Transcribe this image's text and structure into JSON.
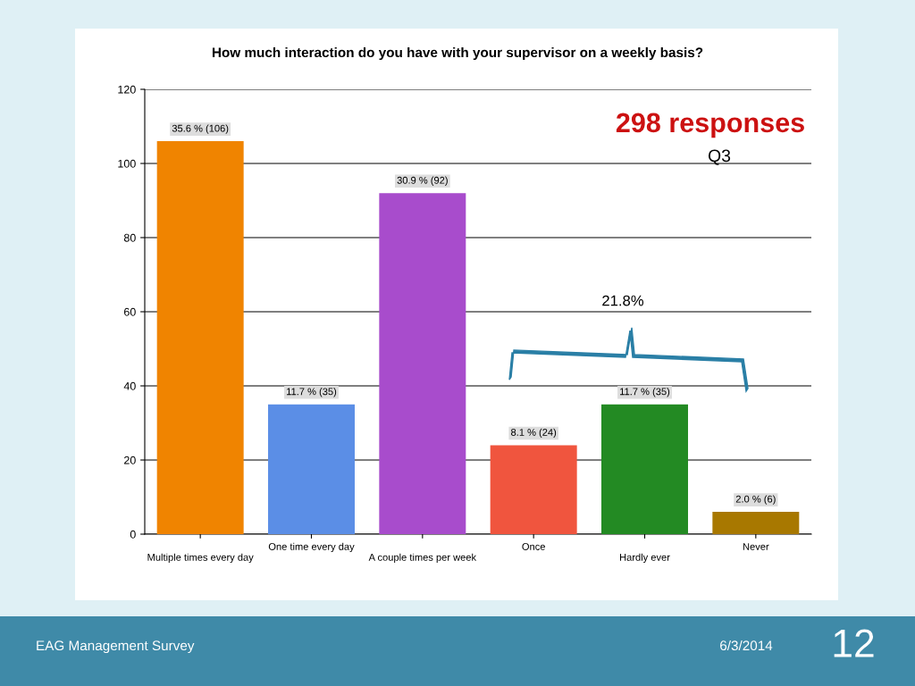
{
  "chart_data": {
    "type": "bar",
    "title": "How much interaction do you have with your supervisor on a weekly basis?",
    "categories": [
      "Multiple times every day",
      "One time every day",
      "A couple times per week",
      "Once",
      "Hardly ever",
      "Never"
    ],
    "values": [
      106,
      35,
      92,
      24,
      35,
      6
    ],
    "colors": [
      "#f08400",
      "#5b8ee6",
      "#a84ccc",
      "#f0553e",
      "#238a23",
      "#a87800"
    ],
    "value_labels": [
      "35.6 % (106)",
      "11.7 % (35)",
      "30.9 % (92)",
      "8.1 % (24)",
      "11.7 % (35)",
      "2.0 % (6)"
    ],
    "ylim": [
      0,
      120
    ],
    "yticks": [
      0,
      20,
      40,
      60,
      80,
      100,
      120
    ],
    "grid": "y",
    "annotations": [
      "298 responses",
      "Q3",
      "21.8%",
      "EAG Management Survey",
      "6/3/2014",
      "12"
    ]
  }
}
